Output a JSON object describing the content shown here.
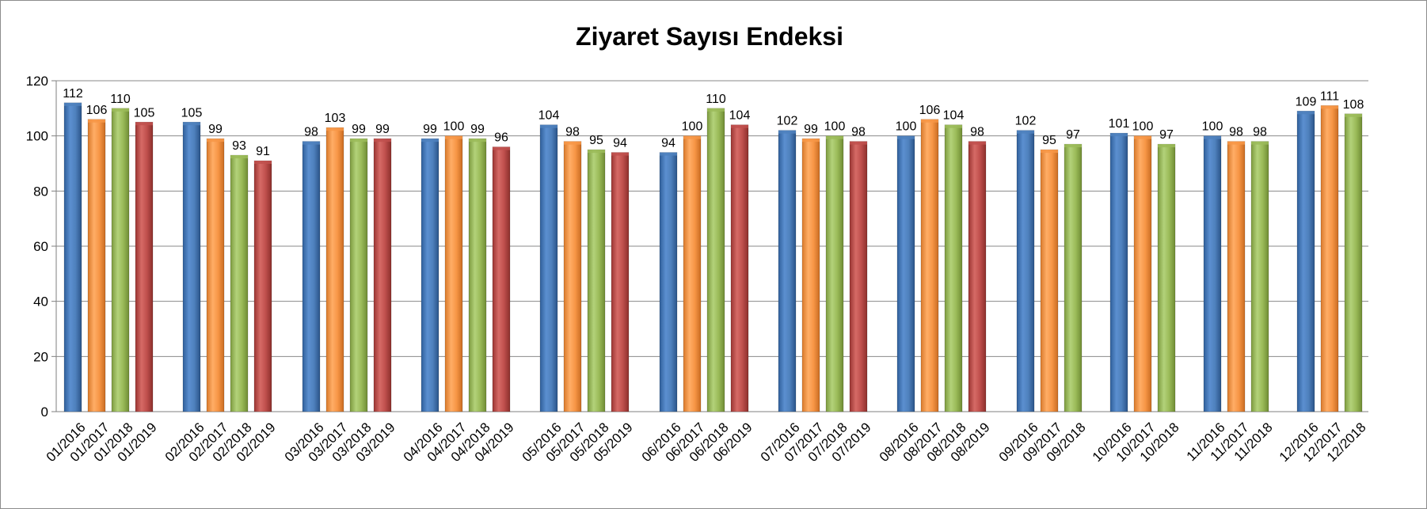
{
  "chart_data": {
    "type": "bar",
    "title": "Ziyaret Sayısı Endeksi",
    "xlabel": "",
    "ylabel": "",
    "ylim": [
      0,
      120
    ],
    "yticks": [
      0,
      20,
      40,
      60,
      80,
      100,
      120
    ],
    "grid": true,
    "legend": "none",
    "series_colors": [
      "#4f81bd",
      "#f79646",
      "#9bbb59",
      "#c0504d"
    ],
    "groups": [
      {
        "bars": [
          {
            "label": "01/2016",
            "value": 112
          },
          {
            "label": "01/2017",
            "value": 106
          },
          {
            "label": "01/2018",
            "value": 110
          },
          {
            "label": "01/2019",
            "value": 105
          }
        ]
      },
      {
        "bars": [
          {
            "label": "02/2016",
            "value": 105
          },
          {
            "label": "02/2017",
            "value": 99
          },
          {
            "label": "02/2018",
            "value": 93
          },
          {
            "label": "02/2019",
            "value": 91
          }
        ]
      },
      {
        "bars": [
          {
            "label": "03/2016",
            "value": 98
          },
          {
            "label": "03/2017",
            "value": 103
          },
          {
            "label": "03/2018",
            "value": 99
          },
          {
            "label": "03/2019",
            "value": 99
          }
        ]
      },
      {
        "bars": [
          {
            "label": "04/2016",
            "value": 99
          },
          {
            "label": "04/2017",
            "value": 100
          },
          {
            "label": "04/2018",
            "value": 99
          },
          {
            "label": "04/2019",
            "value": 96
          }
        ]
      },
      {
        "bars": [
          {
            "label": "05/2016",
            "value": 104
          },
          {
            "label": "05/2017",
            "value": 98
          },
          {
            "label": "05/2018",
            "value": 95
          },
          {
            "label": "05/2019",
            "value": 94
          }
        ]
      },
      {
        "bars": [
          {
            "label": "06/2016",
            "value": 94
          },
          {
            "label": "06/2017",
            "value": 100
          },
          {
            "label": "06/2018",
            "value": 110
          },
          {
            "label": "06/2019",
            "value": 104
          }
        ]
      },
      {
        "bars": [
          {
            "label": "07/2016",
            "value": 102
          },
          {
            "label": "07/2017",
            "value": 99
          },
          {
            "label": "07/2018",
            "value": 100
          },
          {
            "label": "07/2019",
            "value": 98
          }
        ]
      },
      {
        "bars": [
          {
            "label": "08/2016",
            "value": 100
          },
          {
            "label": "08/2017",
            "value": 106
          },
          {
            "label": "08/2018",
            "value": 104
          },
          {
            "label": "08/2019",
            "value": 98
          }
        ]
      },
      {
        "bars": [
          {
            "label": "09/2016",
            "value": 102
          },
          {
            "label": "09/2017",
            "value": 95
          },
          {
            "label": "09/2018",
            "value": 97
          }
        ]
      },
      {
        "bars": [
          {
            "label": "10/2016",
            "value": 101
          },
          {
            "label": "10/2017",
            "value": 100
          },
          {
            "label": "10/2018",
            "value": 97
          }
        ]
      },
      {
        "bars": [
          {
            "label": "11/2016",
            "value": 100
          },
          {
            "label": "11/2017",
            "value": 98
          },
          {
            "label": "11/2018",
            "value": 98
          }
        ]
      },
      {
        "bars": [
          {
            "label": "12/2016",
            "value": 109
          },
          {
            "label": "12/2017",
            "value": 111
          },
          {
            "label": "12/2018",
            "value": 108
          }
        ]
      }
    ]
  }
}
